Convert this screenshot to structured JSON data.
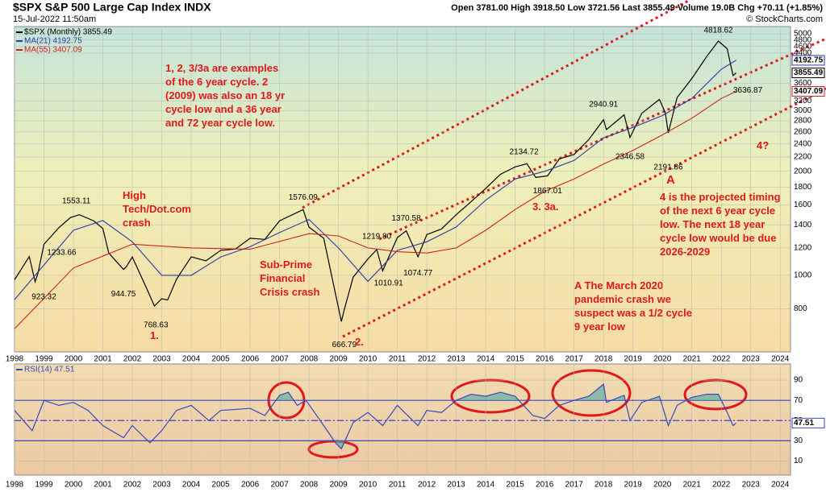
{
  "chart_data": [
    {
      "type": "line",
      "title": "$SPX S&P 500 Large Cap Index INDX",
      "subtitle": "15-Jul-2022 11:50am",
      "quote": "Open 3781.00 High 3918.50 Low 3721.56 Last 3855.49 Volume 19.0B Chg +70.11 (+1.85%)",
      "credit": "© StockCharts.com",
      "log_scale": true,
      "grid": true,
      "xlim": [
        1998,
        2024.35
      ],
      "ylim": [
        600,
        5250
      ],
      "xticks": [
        1998,
        1999,
        2000,
        2001,
        2002,
        2003,
        2004,
        2005,
        2006,
        2007,
        2008,
        2009,
        2010,
        2011,
        2012,
        2013,
        2014,
        2015,
        2016,
        2017,
        2018,
        2019,
        2020,
        2021,
        2022,
        2023,
        2024
      ],
      "yticks": [
        800,
        1000,
        1200,
        1400,
        1600,
        1800,
        2000,
        2200,
        2400,
        2600,
        2800,
        3000,
        3200,
        3600,
        4400,
        4600,
        4800,
        5000
      ],
      "series": [
        {
          "name": "$SPX (Monthly) 3855.49",
          "color": "#000000",
          "last": 3855.49,
          "x": [
            1998.0,
            1998.5,
            1998.7,
            1998.8,
            1999.0,
            1999.5,
            1999.9,
            2000.2,
            2000.7,
            2001.0,
            2001.2,
            2001.7,
            2001.8,
            2002.0,
            2002.5,
            2002.75,
            2003.0,
            2003.2,
            2003.5,
            2004.0,
            2004.5,
            2005.0,
            2005.5,
            2006.0,
            2006.5,
            2007.0,
            2007.8,
            2008.0,
            2008.5,
            2008.8,
            2009.1,
            2009.2,
            2009.5,
            2010.0,
            2010.3,
            2010.5,
            2011.0,
            2011.3,
            2011.7,
            2012.0,
            2012.5,
            2013.0,
            2013.5,
            2014.0,
            2014.5,
            2015.0,
            2015.4,
            2015.7,
            2016.1,
            2016.5,
            2017.0,
            2017.5,
            2018.0,
            2018.1,
            2018.7,
            2018.9,
            2019.3,
            2019.9,
            2020.1,
            2020.2,
            2020.5,
            2021.0,
            2021.5,
            2021.9,
            2022.2,
            2022.3,
            2022.4,
            2022.5
          ],
          "values": [
            970,
            1133,
            957,
            1017,
            1229,
            1372,
            1469,
            1498,
            1436,
            1366,
            1160,
            1040,
            1059,
            1130,
            911,
            815,
            855,
            848,
            974,
            1131,
            1101,
            1181,
            1191,
            1280,
            1270,
            1438,
            1549,
            1378,
            1280,
            968,
            735,
            797,
            987,
            1115,
            1187,
            1030,
            1286,
            1345,
            1131,
            1312,
            1362,
            1498,
            1632,
            1783,
            1960,
            2059,
            2104,
            1920,
            1940,
            2173,
            2238,
            2470,
            2823,
            2640,
            2914,
            2506,
            2945,
            3230,
            2954,
            2585,
            3271,
            3714,
            4297,
            4766,
            4530,
            4132,
            3785,
            3855
          ]
        },
        {
          "name": "MA(21) 4192.75",
          "color": "#2a3aa8",
          "last": 4192.75,
          "x": [
            1998.0,
            2000.0,
            2001.0,
            2002.0,
            2003.0,
            2004.0,
            2005.0,
            2006.0,
            2007.0,
            2008.0,
            2009.0,
            2010.0,
            2011.0,
            2012.0,
            2013.0,
            2014.0,
            2015.0,
            2016.0,
            2017.0,
            2018.0,
            2019.0,
            2020.0,
            2021.0,
            2022.0,
            2022.5
          ],
          "values": [
            850,
            1350,
            1440,
            1250,
            1000,
            1000,
            1130,
            1210,
            1330,
            1450,
            1200,
            960,
            1180,
            1250,
            1380,
            1650,
            1900,
            2000,
            2150,
            2500,
            2680,
            2900,
            3250,
            3950,
            4192.75
          ]
        },
        {
          "name": "MA(55) 3407.09",
          "color": "#d02020",
          "last": 3407.09,
          "x": [
            1998.0,
            2000.0,
            2002.0,
            2004.0,
            2006.0,
            2008.0,
            2009.0,
            2010.0,
            2011.0,
            2012.0,
            2013.0,
            2014.0,
            2015.0,
            2016.0,
            2017.0,
            2018.0,
            2019.0,
            2020.0,
            2021.0,
            2022.0,
            2022.5
          ],
          "values": [
            700,
            1050,
            1230,
            1200,
            1190,
            1320,
            1300,
            1200,
            1170,
            1160,
            1200,
            1350,
            1550,
            1750,
            1900,
            2100,
            2300,
            2550,
            2850,
            3250,
            3407.09
          ]
        }
      ],
      "extremes": {
        "x": [
          1999.0,
          1999.6,
          2000.1,
          2001.7,
          2002.8,
          2007.8,
          2009.2,
          2010.3,
          2011.3,
          2010.7,
          2011.7,
          2015.3,
          2016.1,
          2018.0,
          2018.9,
          2020.2,
          2021.9,
          2022.9
        ],
        "values": [
          923.32,
          1233.66,
          1553.11,
          944.75,
          768.63,
          1576.09,
          666.79,
          1219.8,
          1370.58,
          1010.91,
          1074.77,
          2134.72,
          1867.01,
          2940.91,
          2346.58,
          2191.86,
          4818.62,
          3636.87
        ],
        "value_labels": [
          "923.32",
          "1233.66",
          "1553.11",
          "944.75",
          "768.63",
          "1576.09",
          "666.79",
          "1219.80",
          "1370.58",
          "1010.91",
          "1074.77",
          "2134.72",
          "1867.01",
          "2940.91",
          "2346.58",
          "2191.86",
          "4818.62",
          "3636.87"
        ]
      },
      "annotation_color": "#e0181c",
      "annotations": [
        [
          "1, 2, 3/3a are examples",
          "of the 6 year cycle. 2",
          "(2009) was also an 18 yr",
          "cycle low and a 36 year",
          "and 72 year cycle low."
        ],
        [
          "High",
          "Tech/Dot.com",
          "crash"
        ],
        [
          "Sub-Prime",
          "Financial",
          "Crisis crash"
        ],
        [
          "4 is the projected timing",
          "of the next 6 year cycle",
          "low. The next 18 year",
          "cycle low would be due",
          "2026-2029"
        ],
        [
          "A The March 2020",
          "pandemic crash we",
          "suspect was a 1/2 cycle",
          "9 year low"
        ],
        [
          "1."
        ],
        [
          "2."
        ],
        [
          "3. 3a."
        ],
        [
          "A"
        ],
        [
          "4?"
        ]
      ]
    },
    {
      "type": "line",
      "grid": true,
      "xlim": [
        1998,
        2024.35
      ],
      "ylim": [
        -4,
        106
      ],
      "xticks": [
        1998,
        1999,
        2000,
        2001,
        2002,
        2003,
        2004,
        2005,
        2006,
        2007,
        2008,
        2009,
        2010,
        2011,
        2012,
        2013,
        2014,
        2015,
        2016,
        2017,
        2018,
        2019,
        2020,
        2021,
        2022,
        2023,
        2024
      ],
      "yticks": [
        10,
        30,
        50,
        70,
        90
      ],
      "levels": [
        70,
        50,
        30
      ],
      "series": [
        {
          "name": "RSI(14) 47.51",
          "color": "#3a46c0",
          "last": 47.51,
          "x": [
            1998.0,
            1998.6,
            1999.0,
            1999.5,
            2000.0,
            2000.5,
            2001.0,
            2001.7,
            2002.0,
            2002.6,
            2003.0,
            2003.5,
            2004.0,
            2004.6,
            2005.0,
            2006.0,
            2006.5,
            2007.0,
            2007.3,
            2007.6,
            2007.9,
            2008.5,
            2008.9,
            2009.1,
            2009.5,
            2010.0,
            2010.5,
            2011.0,
            2011.7,
            2012.0,
            2012.5,
            2013.0,
            2013.5,
            2014.0,
            2014.5,
            2015.0,
            2015.6,
            2016.0,
            2016.5,
            2017.0,
            2017.5,
            2018.0,
            2018.1,
            2018.7,
            2018.9,
            2019.3,
            2019.9,
            2020.2,
            2020.5,
            2021.0,
            2021.5,
            2021.9,
            2022.2,
            2022.4,
            2022.5
          ],
          "values": [
            60,
            40,
            70,
            65,
            68,
            60,
            45,
            33,
            45,
            28,
            40,
            60,
            65,
            50,
            60,
            62,
            55,
            75,
            78,
            65,
            70,
            45,
            28,
            22,
            48,
            58,
            45,
            65,
            45,
            60,
            58,
            70,
            76,
            74,
            78,
            74,
            55,
            52,
            65,
            70,
            74,
            86,
            68,
            75,
            50,
            68,
            74,
            45,
            65,
            73,
            76,
            76,
            58,
            45,
            47.51
          ]
        }
      ]
    }
  ]
}
